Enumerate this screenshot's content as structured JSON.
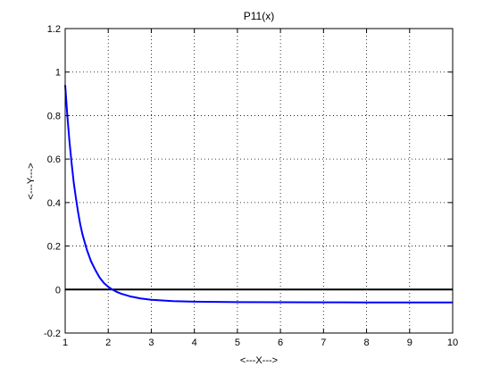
{
  "chart_data": {
    "type": "line",
    "title": "P11(x)",
    "xlabel": "<---X--->",
    "ylabel": "<---Y--->",
    "xlim": [
      1,
      10
    ],
    "ylim": [
      -0.2,
      1.2
    ],
    "xticks": [
      "1",
      "2",
      "3",
      "4",
      "5",
      "6",
      "7",
      "8",
      "9",
      "10"
    ],
    "yticks": [
      "-0.2",
      "0",
      "0.2",
      "0.4",
      "0.6",
      "0.8",
      "1",
      "1.2"
    ],
    "grid": true,
    "series": [
      {
        "color": "#0000ff",
        "x": [
          1.0,
          1.05,
          1.1,
          1.15,
          1.2,
          1.25,
          1.3,
          1.35,
          1.4,
          1.5,
          1.6,
          1.7,
          1.8,
          1.9,
          2.0,
          2.1,
          2.2,
          2.3,
          2.5,
          2.75,
          3.0,
          3.5,
          4.0,
          4.5,
          5.0,
          6.0,
          7.0,
          8.0,
          9.0,
          10.0
        ],
        "y": [
          0.94,
          0.8,
          0.68,
          0.58,
          0.49,
          0.42,
          0.355,
          0.3,
          0.255,
          0.185,
          0.13,
          0.09,
          0.055,
          0.03,
          0.0125,
          -0.0005,
          -0.011,
          -0.019,
          -0.031,
          -0.041,
          -0.047,
          -0.053,
          -0.0558,
          -0.057,
          -0.058,
          -0.0585,
          -0.059,
          -0.0592,
          -0.0594,
          -0.0595
        ]
      }
    ],
    "reference_lines": [
      {
        "orientation": "horizontal",
        "y": 0,
        "color": "#000000"
      }
    ]
  }
}
